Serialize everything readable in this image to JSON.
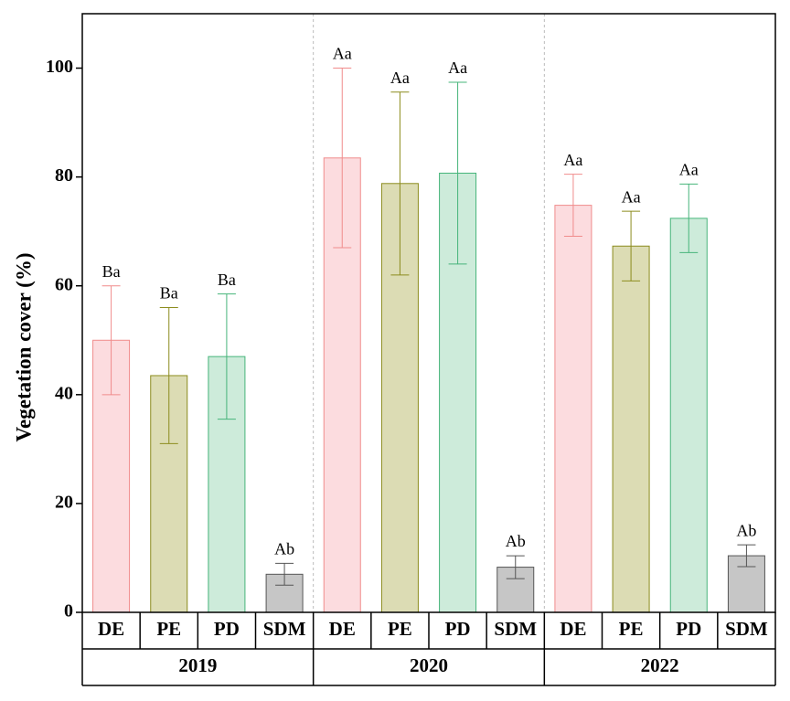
{
  "chart_data": {
    "type": "bar",
    "y_label": "Vegetation cover (%)",
    "categories": [
      "2019",
      "2020",
      "2022"
    ],
    "series": [
      {
        "name": "DE",
        "color": "#fcdcdf",
        "edge_color": "#f08c8c",
        "values": [
          50,
          83.5,
          74.8
        ],
        "errors": [
          10,
          16.5,
          5.7
        ],
        "annotations": [
          "Ba",
          "Aa",
          "Aa"
        ]
      },
      {
        "name": "PE",
        "color": "#dcdcb4",
        "edge_color": "#8c8c1e",
        "values": [
          43.5,
          78.8,
          67.3
        ],
        "errors": [
          12.5,
          16.8,
          6.4
        ],
        "annotations": [
          "Ba",
          "Aa",
          "Aa"
        ]
      },
      {
        "name": "PD",
        "color": "#cdebda",
        "edge_color": "#46b47a",
        "values": [
          47,
          80.7,
          72.4
        ],
        "errors": [
          11.5,
          16.7,
          6.3
        ],
        "annotations": [
          "Ba",
          "Aa",
          "Aa"
        ]
      },
      {
        "name": "SDM",
        "color": "#c6c6c6",
        "edge_color": "#555555",
        "values": [
          7,
          8.3,
          10.4
        ],
        "errors": [
          2,
          2.1,
          2
        ],
        "annotations": [
          "Ab",
          "Ab",
          "Ab"
        ]
      }
    ],
    "ylim": [
      0,
      110
    ],
    "yticks": [
      0,
      20,
      40,
      60,
      80,
      100
    ]
  }
}
